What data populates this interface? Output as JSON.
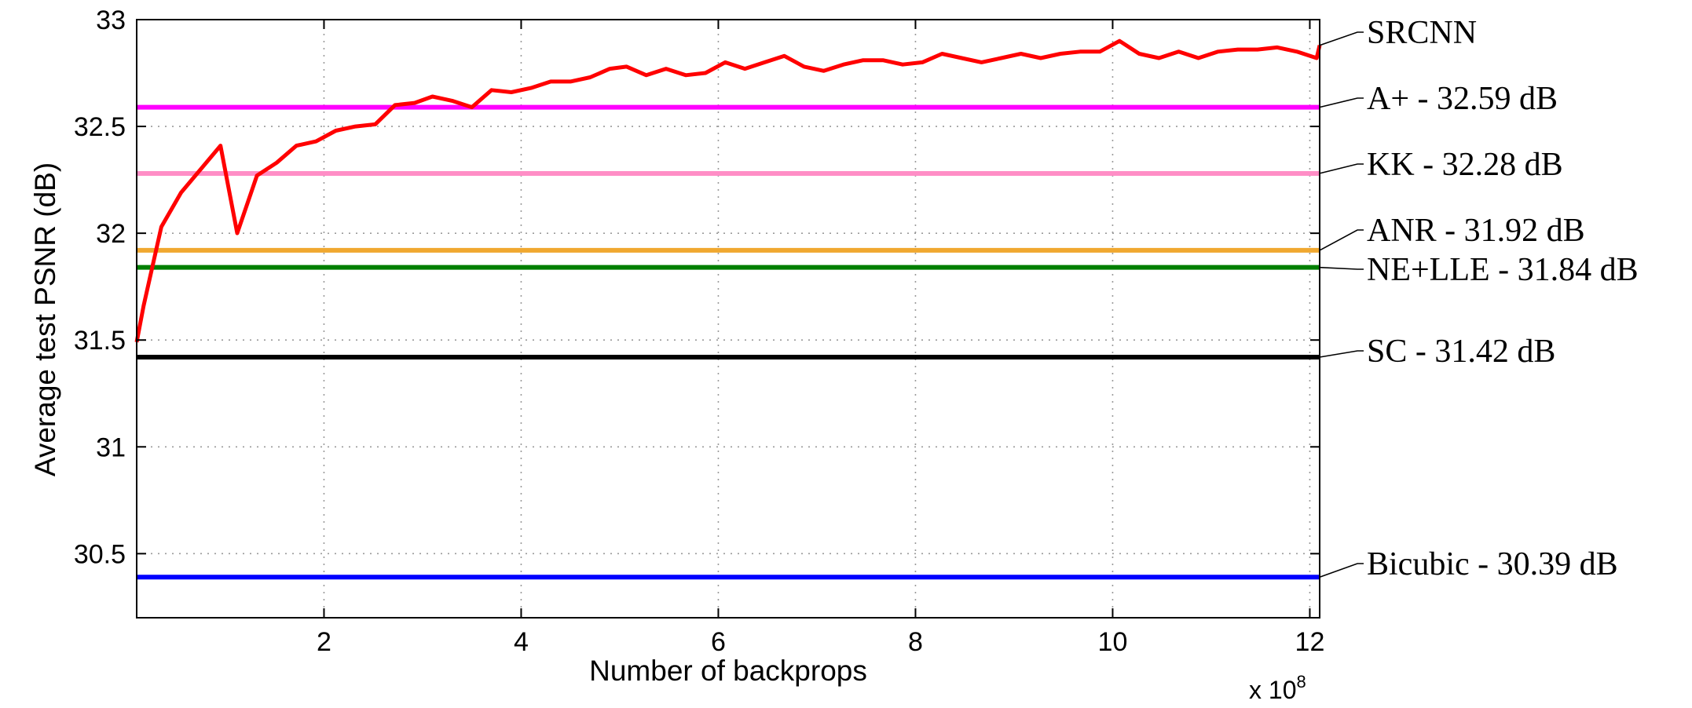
{
  "chart_data": {
    "type": "line",
    "title": "",
    "xlabel": "Number of backprops",
    "ylabel": "Average test PSNR (dB)",
    "x_multiplier_label": "x 10",
    "x_multiplier_exponent": "8",
    "xlim": [
      0.1,
      12.1
    ],
    "ylim": [
      30.2,
      33.0
    ],
    "xticks": [
      2,
      4,
      6,
      8,
      10,
      12
    ],
    "xtick_labels": [
      "2",
      "4",
      "6",
      "8",
      "10",
      "12"
    ],
    "yticks": [
      30.5,
      31,
      31.5,
      32,
      32.5,
      33
    ],
    "ytick_labels": [
      "30.5",
      "31",
      "31.5",
      "32",
      "32.5",
      "33"
    ],
    "grid": true,
    "series": [
      {
        "name": "SRCNN",
        "label": "SRCNN",
        "color": "#ff0000",
        "x": [
          0.1,
          0.17,
          0.35,
          0.55,
          0.75,
          0.95,
          1.12,
          1.32,
          1.52,
          1.72,
          1.92,
          2.12,
          2.32,
          2.52,
          2.72,
          2.92,
          3.1,
          3.3,
          3.5,
          3.7,
          3.9,
          4.1,
          4.3,
          4.5,
          4.7,
          4.9,
          5.07,
          5.27,
          5.47,
          5.67,
          5.87,
          6.07,
          6.27,
          6.47,
          6.67,
          6.87,
          7.07,
          7.27,
          7.47,
          7.67,
          7.87,
          8.07,
          8.27,
          8.47,
          8.67,
          8.87,
          9.07,
          9.27,
          9.47,
          9.67,
          9.87,
          10.07,
          10.27,
          10.47,
          10.67,
          10.87,
          11.07,
          11.27,
          11.47,
          11.67,
          11.87,
          12.07,
          12.1
        ],
        "values": [
          31.49,
          31.66,
          32.03,
          32.19,
          32.3,
          32.41,
          32.0,
          32.27,
          32.33,
          32.41,
          32.43,
          32.48,
          32.5,
          32.51,
          32.6,
          32.61,
          32.64,
          32.62,
          32.59,
          32.67,
          32.66,
          32.68,
          32.71,
          32.71,
          32.73,
          32.77,
          32.78,
          32.74,
          32.77,
          32.74,
          32.75,
          32.8,
          32.77,
          32.8,
          32.83,
          32.78,
          32.76,
          32.79,
          32.81,
          32.81,
          32.79,
          32.8,
          32.84,
          32.82,
          32.8,
          32.82,
          32.84,
          32.82,
          32.84,
          32.85,
          32.85,
          32.9,
          32.84,
          32.82,
          32.85,
          32.82,
          32.85,
          32.86,
          32.86,
          32.87,
          32.85,
          32.82,
          32.88
        ]
      },
      {
        "name": "A+",
        "label": "A+ - 32.59 dB",
        "color": "#ff00ff",
        "constant": 32.59
      },
      {
        "name": "KK",
        "label": "KK - 32.28 dB",
        "color": "#ff8ec6",
        "constant": 32.28
      },
      {
        "name": "ANR",
        "label": "ANR - 31.92 dB",
        "color": "#f0a830",
        "constant": 31.92
      },
      {
        "name": "NE+LLE",
        "label": "NE+LLE - 31.84 dB",
        "color": "#007f00",
        "constant": 31.84
      },
      {
        "name": "SC",
        "label": "SC - 31.42 dB",
        "color": "#000000",
        "constant": 31.42
      },
      {
        "name": "Bicubic",
        "label": "Bicubic - 30.39 dB",
        "color": "#0000ff",
        "constant": 30.39
      }
    ]
  }
}
